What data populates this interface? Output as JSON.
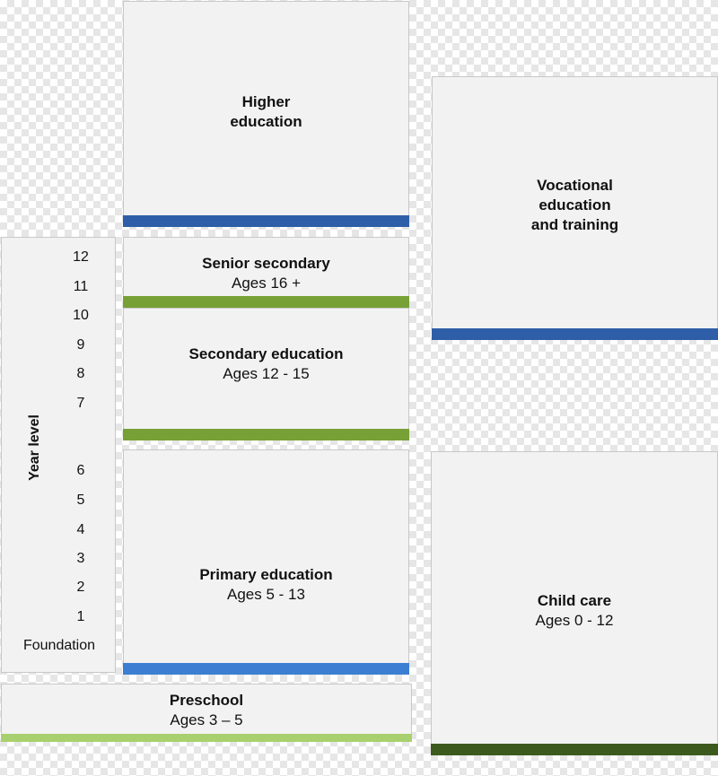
{
  "colors": {
    "box_fill": "#f2f2f2",
    "box_border": "#c8c8c8",
    "dark_blue": "#2e5ea7",
    "mid_blue": "#3c7fd2",
    "olive_green": "#77a036",
    "light_green": "#a9d06e",
    "dark_green": "#3c5a1e"
  },
  "year_level": {
    "title": "Year level",
    "levels": [
      "12",
      "11",
      "10",
      "9",
      "8",
      "7",
      "6",
      "5",
      "4",
      "3",
      "2",
      "1",
      "Foundation"
    ]
  },
  "blocks": {
    "higher_education": {
      "title": "Higher\neducation",
      "subtitle": ""
    },
    "senior_secondary": {
      "title": "Senior secondary",
      "subtitle": "Ages 16 +"
    },
    "secondary_education": {
      "title": "Secondary education",
      "subtitle": "Ages 12 - 15"
    },
    "primary_education": {
      "title": "Primary education",
      "subtitle": "Ages 5 - 13"
    },
    "preschool": {
      "title": "Preschool",
      "subtitle": "Ages 3 – 5"
    },
    "vocational": {
      "title": "Vocational\neducation\nand training",
      "subtitle": ""
    },
    "child_care": {
      "title": "Child care",
      "subtitle": "Ages 0 - 12"
    }
  }
}
